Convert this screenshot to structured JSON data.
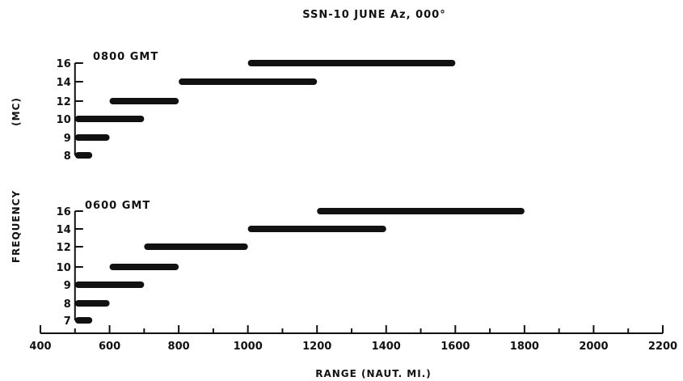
{
  "chart_data": {
    "type": "bar",
    "orientation": "horizontal-range",
    "title": "SSN-10 JUNE Az, 000°",
    "xlabel": "RANGE (NAUT. MI.)",
    "ylabel": "FREQUENCY",
    "ylabel_unit": "(MC)",
    "xlim": [
      400,
      2200
    ],
    "xticks": [
      400,
      600,
      800,
      1000,
      1200,
      1400,
      1600,
      1800,
      2000,
      2200
    ],
    "grid": false,
    "panels": [
      {
        "label": "0800 GMT",
        "bars": [
          {
            "freq": "16",
            "start": 1000,
            "end": 1600
          },
          {
            "freq": "14",
            "start": 800,
            "end": 1200
          },
          {
            "freq": "12",
            "start": 600,
            "end": 800
          },
          {
            "freq": "10",
            "start": 500,
            "end": 700
          },
          {
            "freq": "9",
            "start": 500,
            "end": 600
          },
          {
            "freq": "8",
            "start": 500,
            "end": 550
          }
        ]
      },
      {
        "label": "0600 GMT",
        "bars": [
          {
            "freq": "16",
            "start": 1200,
            "end": 1800
          },
          {
            "freq": "14",
            "start": 1000,
            "end": 1400
          },
          {
            "freq": "12",
            "start": 700,
            "end": 1000
          },
          {
            "freq": "10",
            "start": 600,
            "end": 800
          },
          {
            "freq": "9",
            "start": 500,
            "end": 700
          },
          {
            "freq": "8",
            "start": 500,
            "end": 600
          },
          {
            "freq": "7",
            "start": 500,
            "end": 550
          }
        ]
      }
    ]
  }
}
